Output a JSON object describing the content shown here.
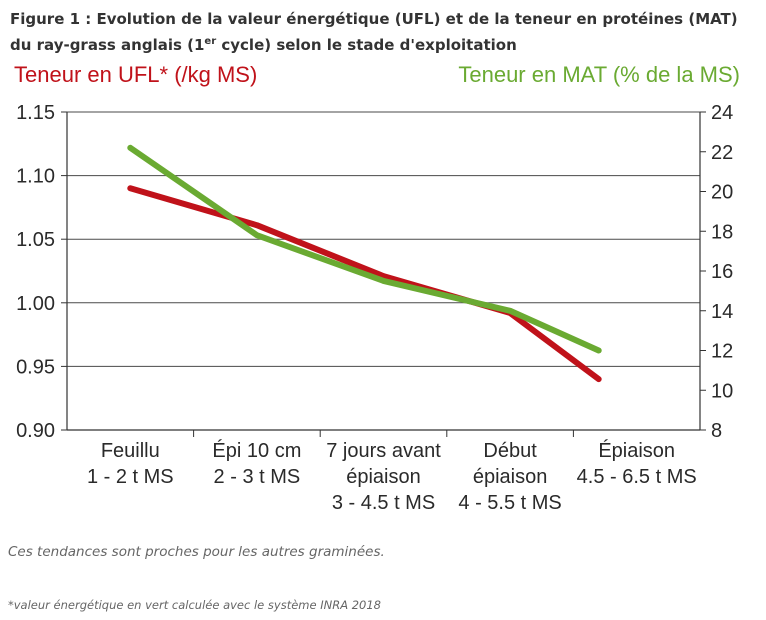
{
  "figure": {
    "title_main": "Figure 1 : Evolution de la valeur énergétique (UFL) et de la teneur en protéines (MAT) du ray-grass anglais (1",
    "title_sup": "er",
    "title_end": " cycle) selon le stade d'exploitation"
  },
  "chart_data": {
    "type": "line",
    "categories": [
      [
        "Feuillu",
        "1 - 2 t MS"
      ],
      [
        "Épi 10 cm",
        "2 - 3 t MS"
      ],
      [
        "7 jours avant",
        "épiaison",
        "3 - 4.5 t MS"
      ],
      [
        "Début",
        "épiaison",
        "4 - 5.5 t MS"
      ],
      [
        "Épiaison",
        "4.5 - 6.5 t MS"
      ]
    ],
    "y_left": {
      "label": "Teneur en UFL* (/kg MS)",
      "ylim": [
        0.9,
        1.15
      ],
      "ticks": [
        "0.90",
        "0.95",
        "1.00",
        "1.05",
        "1.10",
        "1.15"
      ],
      "color": "#c0121a"
    },
    "y_right": {
      "label": "Teneur en MAT (% de la MS)",
      "ylim": [
        8,
        24
      ],
      "ticks": [
        "8",
        "10",
        "12",
        "14",
        "16",
        "18",
        "20",
        "22",
        "24"
      ],
      "color": "#6aaa32"
    },
    "series": [
      {
        "axis": "left",
        "color": "#c0121a",
        "values": [
          {
            "x": 0.0,
            "y": 1.09
          },
          {
            "x": 1.0,
            "y": 1.061
          },
          {
            "x": 2.0,
            "y": 1.021
          },
          {
            "x": 3.0,
            "y": 0.992
          },
          {
            "x": 3.7,
            "y": 0.94
          }
        ]
      },
      {
        "axis": "right",
        "color": "#6aaa32",
        "values": [
          {
            "x": 0.0,
            "y": 22.2
          },
          {
            "x": 1.0,
            "y": 17.8
          },
          {
            "x": 2.0,
            "y": 15.5
          },
          {
            "x": 3.0,
            "y": 14.0
          },
          {
            "x": 3.7,
            "y": 12.0
          }
        ]
      }
    ],
    "grid": true
  },
  "notes": {
    "trend": "Ces tendances sont proches pour les autres graminées.",
    "footnote": "*valeur énergétique en vert calculée avec le système INRA 2018"
  }
}
